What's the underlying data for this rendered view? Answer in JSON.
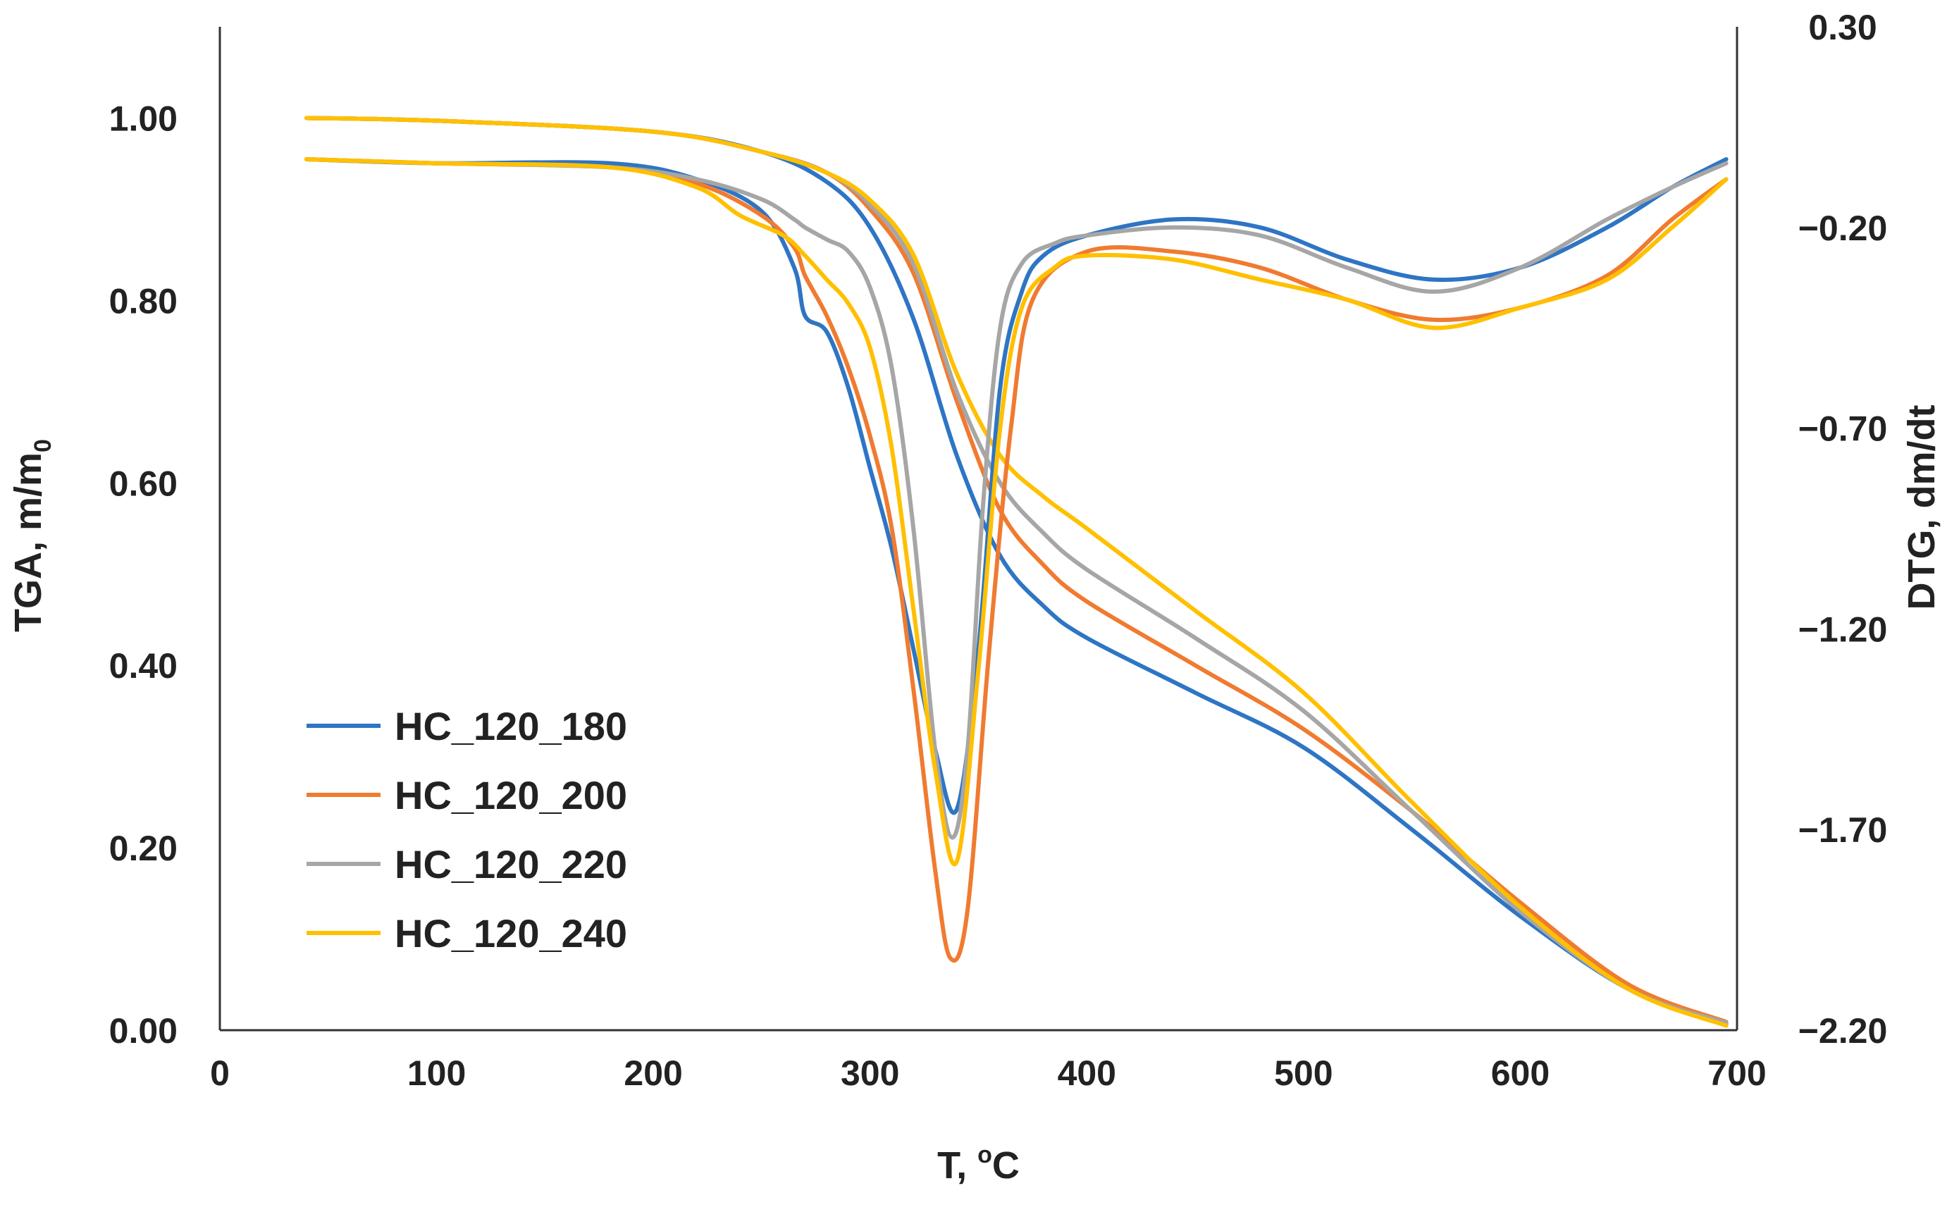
{
  "chart_data": {
    "type": "line",
    "title": "",
    "xlabel": "T, °C",
    "xlabel_parts": {
      "main": "T, ",
      "sup": "o",
      "unit": "C"
    },
    "ylabel": "TGA, m/m0",
    "ylabel_parts": {
      "main": "TGA, m/m",
      "sub": "0"
    },
    "y2label": "DTG, dm/dt",
    "xlim": [
      0,
      700
    ],
    "ylim": [
      0,
      1.1
    ],
    "y2lim": [
      -2.2,
      0.3
    ],
    "xticks": [
      0,
      100,
      200,
      300,
      400,
      500,
      600,
      700
    ],
    "xtick_labels": [
      "0",
      "100",
      "200",
      "300",
      "400",
      "500",
      "600",
      "700"
    ],
    "yticks": [
      0,
      0.2,
      0.4,
      0.6,
      0.8,
      1.0
    ],
    "ytick_labels": [
      "0.00",
      "0.20",
      "0.40",
      "0.60",
      "0.80",
      "1.00"
    ],
    "y2ticks": [
      -2.2,
      -1.7,
      -1.2,
      -0.7,
      -0.2,
      0.3
    ],
    "y2tick_labels": [
      "−2.20",
      "−1.70",
      "−1.20",
      "−0.70",
      "−0.20",
      "0.30"
    ],
    "grid": false,
    "legend_position": "bottom-left",
    "series": [
      {
        "name": "HC_120_180",
        "color": "#2E75C4",
        "axis": "left",
        "kind": "TGA",
        "x": [
          40,
          100,
          200,
          250,
          280,
          300,
          320,
          340,
          360,
          380,
          400,
          450,
          500,
          550,
          600,
          650,
          695
        ],
        "y": [
          1.0,
          0.997,
          0.985,
          0.963,
          0.93,
          0.88,
          0.78,
          0.63,
          0.52,
          0.465,
          0.43,
          0.37,
          0.31,
          0.22,
          0.125,
          0.045,
          0.007
        ]
      },
      {
        "name": "HC_120_200",
        "color": "#F07B30",
        "axis": "left",
        "kind": "TGA",
        "x": [
          40,
          100,
          200,
          250,
          280,
          300,
          320,
          340,
          360,
          380,
          400,
          450,
          500,
          550,
          600,
          650,
          695
        ],
        "y": [
          1.0,
          0.997,
          0.985,
          0.963,
          0.94,
          0.9,
          0.83,
          0.69,
          0.57,
          0.51,
          0.47,
          0.4,
          0.33,
          0.24,
          0.14,
          0.05,
          0.009
        ]
      },
      {
        "name": "HC_120_220",
        "color": "#A6A6A6",
        "axis": "left",
        "kind": "TGA",
        "x": [
          40,
          100,
          200,
          250,
          280,
          300,
          320,
          340,
          360,
          380,
          400,
          450,
          500,
          550,
          600,
          650,
          695
        ],
        "y": [
          1.0,
          0.997,
          0.985,
          0.963,
          0.94,
          0.905,
          0.84,
          0.7,
          0.6,
          0.545,
          0.505,
          0.43,
          0.35,
          0.24,
          0.13,
          0.045,
          0.008
        ]
      },
      {
        "name": "HC_120_240",
        "color": "#FFC000",
        "axis": "left",
        "kind": "TGA",
        "x": [
          40,
          100,
          200,
          250,
          280,
          300,
          320,
          340,
          360,
          380,
          400,
          450,
          500,
          550,
          600,
          650,
          695
        ],
        "y": [
          1.0,
          0.997,
          0.985,
          0.963,
          0.94,
          0.91,
          0.85,
          0.72,
          0.63,
          0.585,
          0.55,
          0.46,
          0.37,
          0.25,
          0.135,
          0.045,
          0.005
        ]
      },
      {
        "name": "HC_120_180",
        "color": "#2E75C4",
        "axis": "right",
        "kind": "DTG",
        "x": [
          40,
          100,
          180,
          220,
          250,
          265,
          270,
          280,
          290,
          300,
          310,
          320,
          330,
          340,
          350,
          360,
          370,
          380,
          400,
          440,
          480,
          520,
          560,
          600,
          640,
          670,
          695
        ],
        "y": [
          -0.03,
          -0.04,
          -0.04,
          -0.08,
          -0.16,
          -0.3,
          -0.42,
          -0.46,
          -0.6,
          -0.8,
          -1.0,
          -1.25,
          -1.5,
          -1.65,
          -1.25,
          -0.6,
          -0.36,
          -0.27,
          -0.22,
          -0.18,
          -0.2,
          -0.28,
          -0.33,
          -0.3,
          -0.2,
          -0.1,
          -0.03
        ]
      },
      {
        "name": "HC_120_200",
        "color": "#F07B30",
        "axis": "right",
        "kind": "DTG",
        "x": [
          40,
          100,
          180,
          220,
          250,
          265,
          270,
          280,
          290,
          300,
          310,
          320,
          330,
          337,
          345,
          355,
          365,
          375,
          400,
          440,
          480,
          520,
          560,
          600,
          640,
          670,
          695
        ],
        "y": [
          -0.03,
          -0.04,
          -0.05,
          -0.09,
          -0.17,
          -0.25,
          -0.32,
          -0.42,
          -0.55,
          -0.72,
          -0.95,
          -1.35,
          -1.8,
          -2.02,
          -1.9,
          -1.25,
          -0.7,
          -0.38,
          -0.26,
          -0.26,
          -0.3,
          -0.38,
          -0.43,
          -0.4,
          -0.32,
          -0.18,
          -0.08
        ]
      },
      {
        "name": "HC_120_220",
        "color": "#A6A6A6",
        "axis": "right",
        "kind": "DTG",
        "x": [
          40,
          100,
          180,
          220,
          250,
          265,
          270,
          280,
          290,
          300,
          310,
          320,
          330,
          338,
          345,
          352,
          360,
          370,
          385,
          400,
          440,
          480,
          520,
          560,
          600,
          640,
          670,
          695
        ],
        "y": [
          -0.03,
          -0.04,
          -0.05,
          -0.08,
          -0.13,
          -0.18,
          -0.2,
          -0.23,
          -0.26,
          -0.35,
          -0.55,
          -0.95,
          -1.5,
          -1.72,
          -1.5,
          -0.9,
          -0.45,
          -0.29,
          -0.24,
          -0.22,
          -0.2,
          -0.22,
          -0.3,
          -0.36,
          -0.3,
          -0.18,
          -0.1,
          -0.04
        ]
      },
      {
        "name": "HC_120_240",
        "color": "#FFC000",
        "axis": "right",
        "kind": "DTG",
        "x": [
          40,
          100,
          180,
          220,
          240,
          260,
          270,
          280,
          290,
          300,
          310,
          320,
          330,
          340,
          350,
          360,
          370,
          385,
          400,
          440,
          480,
          520,
          560,
          600,
          640,
          670,
          695
        ],
        "y": [
          -0.03,
          -0.04,
          -0.05,
          -0.1,
          -0.17,
          -0.22,
          -0.27,
          -0.33,
          -0.39,
          -0.5,
          -0.75,
          -1.15,
          -1.55,
          -1.78,
          -1.3,
          -0.7,
          -0.4,
          -0.3,
          -0.27,
          -0.28,
          -0.33,
          -0.38,
          -0.45,
          -0.4,
          -0.33,
          -0.2,
          -0.08
        ]
      }
    ],
    "legend": [
      {
        "name": "HC_120_180",
        "color": "#2E75C4"
      },
      {
        "name": "HC_120_200",
        "color": "#F07B30"
      },
      {
        "name": "HC_120_220",
        "color": "#A6A6A6"
      },
      {
        "name": "HC_120_240",
        "color": "#FFC000"
      }
    ]
  }
}
